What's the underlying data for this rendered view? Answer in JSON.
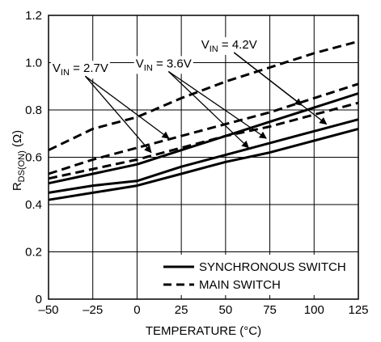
{
  "chart_data": {
    "type": "line",
    "title": "",
    "xlabel": "TEMPERATURE (°C)",
    "ylabel": "R",
    "ylabel_sub": "DS(ON)",
    "ylabel_unit": " (Ω)",
    "xlim": [
      -50,
      125
    ],
    "ylim": [
      0,
      1.2
    ],
    "x_ticks": [
      -50,
      -25,
      0,
      25,
      50,
      75,
      100,
      125
    ],
    "x_tick_labels": [
      "–50",
      "–25",
      "0",
      "25",
      "50",
      "75",
      "100",
      "125"
    ],
    "y_ticks": [
      0,
      0.2,
      0.4,
      0.6,
      0.8,
      1.0,
      1.2
    ],
    "y_tick_labels": [
      "0",
      "0.2",
      "0.4",
      "0.6",
      "0.8",
      "1.0",
      "1.2"
    ],
    "grid": true,
    "legend_position": "bottom-right",
    "legend": [
      {
        "label": "SYNCHRONOUS SWITCH",
        "style": "solid"
      },
      {
        "label": "MAIN SWITCH",
        "style": "dashed"
      }
    ],
    "series": [
      {
        "style": "solid",
        "x": [
          -50,
          -25,
          0,
          25,
          50,
          75,
          100,
          125
        ],
        "values": [
          0.42,
          0.45,
          0.48,
          0.53,
          0.58,
          0.62,
          0.67,
          0.72
        ]
      },
      {
        "style": "solid",
        "x": [
          -50,
          -25,
          0,
          25,
          50,
          75,
          100,
          125
        ],
        "values": [
          0.45,
          0.48,
          0.5,
          0.56,
          0.61,
          0.66,
          0.71,
          0.76
        ]
      },
      {
        "style": "solid",
        "x": [
          -50,
          -25,
          0,
          25,
          50,
          75,
          100,
          125
        ],
        "values": [
          0.49,
          0.53,
          0.57,
          0.63,
          0.69,
          0.75,
          0.81,
          0.87
        ]
      },
      {
        "style": "dashed",
        "x": [
          -50,
          -25,
          0,
          25,
          50,
          75,
          100,
          125
        ],
        "values": [
          0.51,
          0.55,
          0.59,
          0.64,
          0.69,
          0.73,
          0.78,
          0.83
        ]
      },
      {
        "style": "dashed",
        "x": [
          -50,
          -25,
          0,
          25,
          50,
          75,
          100,
          125
        ],
        "values": [
          0.53,
          0.59,
          0.64,
          0.69,
          0.74,
          0.79,
          0.85,
          0.91
        ]
      },
      {
        "style": "dashed",
        "x": [
          -50,
          -25,
          0,
          25,
          50,
          75,
          100,
          125
        ],
        "values": [
          0.63,
          0.72,
          0.77,
          0.85,
          0.92,
          0.98,
          1.04,
          1.09
        ]
      }
    ],
    "annotations": [
      {
        "prefix": "V",
        "sub": "IN",
        "suffix": " = 2.7V",
        "anchor": [
          -32,
          0.96
        ],
        "arrow_targets": [
          [
            18,
            0.68
          ],
          [
            8,
            0.62
          ]
        ]
      },
      {
        "prefix": "V",
        "sub": "IN",
        "suffix": " = 3.6V",
        "anchor": [
          15,
          0.98
        ],
        "arrow_targets": [
          [
            73,
            0.68
          ],
          [
            63,
            0.64
          ]
        ]
      },
      {
        "prefix": "V",
        "sub": "IN",
        "suffix": " = 4.2V",
        "anchor": [
          52,
          1.06
        ],
        "arrow_targets": [
          [
            107,
            0.74
          ],
          [
            93,
            0.82
          ]
        ]
      }
    ]
  }
}
